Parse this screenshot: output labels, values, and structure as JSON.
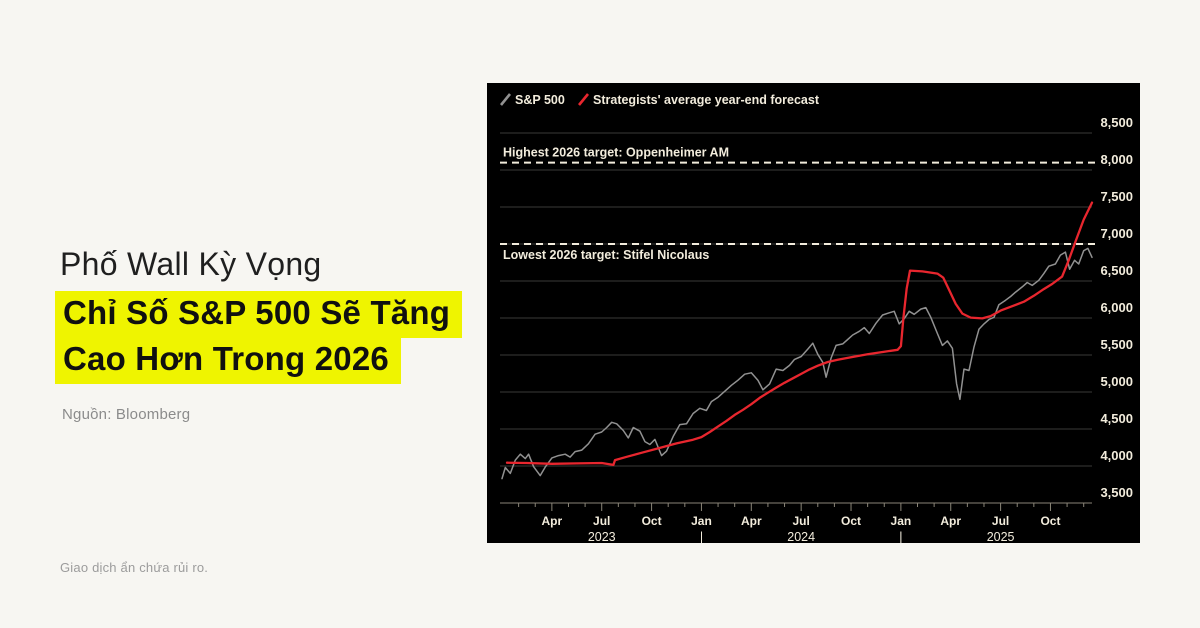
{
  "page": {
    "background_color": "#f7f6f2",
    "headline_line1": "Phố Wall Kỳ Vọng",
    "headline_line2": "Chỉ Số S&P 500 Sẽ Tăng",
    "headline_line3": "Cao Hơn Trong 2026",
    "highlight_color": "#eff400",
    "source": "Nguồn: Bloomberg",
    "disclaimer": "Giao dịch ẩn chứa rủi ro."
  },
  "chart_data": {
    "type": "line",
    "background": "#000000",
    "text_color": "#f2ecdc",
    "grid_color": "#3a3a37",
    "baseline_color": "#8a8578",
    "legend": [
      {
        "label": "S&P 500",
        "color": "#919191",
        "marker": "slash"
      },
      {
        "label": "Strategists' average year-end forecast",
        "color": "#e8262e",
        "marker": "slash"
      }
    ],
    "x_unit": "months since Jan 2023 (Jan 2023 – Dec 2025)",
    "ylim": [
      3500,
      8500
    ],
    "y_ticks": [
      {
        "v": 8500,
        "label": "8,500"
      },
      {
        "v": 8000,
        "label": "8,000"
      },
      {
        "v": 7500,
        "label": "7,500"
      },
      {
        "v": 7000,
        "label": "7,000"
      },
      {
        "v": 6500,
        "label": "6,500"
      },
      {
        "v": 6000,
        "label": "6,000"
      },
      {
        "v": 5500,
        "label": "5,500"
      },
      {
        "v": 5000,
        "label": "5,000"
      },
      {
        "v": 4500,
        "label": "4,500"
      },
      {
        "v": 4000,
        "label": "4,000"
      },
      {
        "v": 3500,
        "label": "3,500"
      }
    ],
    "x_ticks": [
      {
        "m": 3,
        "label": "Apr"
      },
      {
        "m": 6,
        "label": "Jul"
      },
      {
        "m": 9,
        "label": "Oct"
      },
      {
        "m": 12,
        "label": "Jan"
      },
      {
        "m": 15,
        "label": "Apr"
      },
      {
        "m": 18,
        "label": "Jul"
      },
      {
        "m": 21,
        "label": "Oct"
      },
      {
        "m": 24,
        "label": "Jan"
      },
      {
        "m": 27,
        "label": "Apr"
      },
      {
        "m": 30,
        "label": "Jul"
      },
      {
        "m": 33,
        "label": "Oct"
      }
    ],
    "year_labels": [
      {
        "m": 6,
        "label": "2023"
      },
      {
        "m": 12,
        "label": "|"
      },
      {
        "m": 18,
        "label": "2024"
      },
      {
        "m": 24,
        "label": "|"
      },
      {
        "m": 30,
        "label": "2025"
      }
    ],
    "annotations": [
      {
        "label": "Highest 2026 target: Oppenheimer AM",
        "value": 8100,
        "text_side": "above",
        "color": "#f2ecdc"
      },
      {
        "label": "Lowest 2026 target: Stifel Nicolaus",
        "value": 7000,
        "text_side": "below",
        "color": "#f2ecdc"
      }
    ],
    "series": [
      {
        "name": "S&P 500",
        "color": "#919191",
        "width": 1.5,
        "points": [
          [
            0,
            3830
          ],
          [
            0.2,
            3980
          ],
          [
            0.5,
            3900
          ],
          [
            0.8,
            4080
          ],
          [
            1.1,
            4160
          ],
          [
            1.4,
            4100
          ],
          [
            1.6,
            4160
          ],
          [
            1.9,
            3990
          ],
          [
            2.3,
            3870
          ],
          [
            2.6,
            3985
          ],
          [
            3,
            4110
          ],
          [
            3.4,
            4140
          ],
          [
            3.8,
            4160
          ],
          [
            4.1,
            4120
          ],
          [
            4.4,
            4195
          ],
          [
            4.8,
            4215
          ],
          [
            5.2,
            4300
          ],
          [
            5.6,
            4430
          ],
          [
            6,
            4460
          ],
          [
            6.3,
            4520
          ],
          [
            6.6,
            4590
          ],
          [
            6.9,
            4570
          ],
          [
            7.3,
            4480
          ],
          [
            7.6,
            4380
          ],
          [
            7.9,
            4520
          ],
          [
            8.3,
            4470
          ],
          [
            8.6,
            4330
          ],
          [
            8.9,
            4290
          ],
          [
            9.2,
            4360
          ],
          [
            9.6,
            4140
          ],
          [
            9.9,
            4200
          ],
          [
            10.3,
            4400
          ],
          [
            10.7,
            4560
          ],
          [
            11.1,
            4570
          ],
          [
            11.5,
            4710
          ],
          [
            11.9,
            4780
          ],
          [
            12.3,
            4750
          ],
          [
            12.6,
            4870
          ],
          [
            13,
            4930
          ],
          [
            13.4,
            5010
          ],
          [
            13.8,
            5090
          ],
          [
            14.2,
            5160
          ],
          [
            14.6,
            5240
          ],
          [
            15,
            5260
          ],
          [
            15.4,
            5160
          ],
          [
            15.7,
            5030
          ],
          [
            16.1,
            5110
          ],
          [
            16.5,
            5310
          ],
          [
            16.9,
            5290
          ],
          [
            17.3,
            5360
          ],
          [
            17.6,
            5440
          ],
          [
            18,
            5480
          ],
          [
            18.4,
            5580
          ],
          [
            18.7,
            5660
          ],
          [
            19,
            5510
          ],
          [
            19.3,
            5400
          ],
          [
            19.5,
            5200
          ],
          [
            19.8,
            5460
          ],
          [
            20.1,
            5630
          ],
          [
            20.5,
            5650
          ],
          [
            20.8,
            5710
          ],
          [
            21.1,
            5770
          ],
          [
            21.5,
            5820
          ],
          [
            21.8,
            5870
          ],
          [
            22.1,
            5790
          ],
          [
            22.5,
            5930
          ],
          [
            22.9,
            6040
          ],
          [
            23.3,
            6070
          ],
          [
            23.6,
            6090
          ],
          [
            23.9,
            5920
          ],
          [
            24.2,
            5990
          ],
          [
            24.5,
            6090
          ],
          [
            24.8,
            6050
          ],
          [
            25.2,
            6120
          ],
          [
            25.5,
            6140
          ],
          [
            25.8,
            6010
          ],
          [
            26.2,
            5790
          ],
          [
            26.5,
            5630
          ],
          [
            26.8,
            5690
          ],
          [
            27.1,
            5590
          ],
          [
            27.35,
            5110
          ],
          [
            27.55,
            4900
          ],
          [
            27.8,
            5310
          ],
          [
            28.1,
            5290
          ],
          [
            28.4,
            5610
          ],
          [
            28.7,
            5850
          ],
          [
            29,
            5920
          ],
          [
            29.3,
            5980
          ],
          [
            29.6,
            6010
          ],
          [
            29.9,
            6180
          ],
          [
            30.3,
            6240
          ],
          [
            30.6,
            6290
          ],
          [
            30.9,
            6350
          ],
          [
            31.3,
            6420
          ],
          [
            31.6,
            6480
          ],
          [
            31.9,
            6440
          ],
          [
            32.3,
            6510
          ],
          [
            32.6,
            6600
          ],
          [
            32.9,
            6700
          ],
          [
            33.3,
            6730
          ],
          [
            33.6,
            6850
          ],
          [
            33.9,
            6890
          ],
          [
            34.15,
            6660
          ],
          [
            34.45,
            6780
          ],
          [
            34.7,
            6730
          ],
          [
            35,
            6910
          ],
          [
            35.25,
            6940
          ],
          [
            35.5,
            6820
          ]
        ]
      },
      {
        "name": "Strategists' average year-end forecast",
        "color": "#e8262e",
        "width": 2.3,
        "points": [
          [
            0.3,
            4045
          ],
          [
            1.5,
            4040
          ],
          [
            3,
            4030
          ],
          [
            4.5,
            4035
          ],
          [
            6,
            4040
          ],
          [
            6.7,
            4015
          ],
          [
            6.8,
            4080
          ],
          [
            7.5,
            4125
          ],
          [
            8.5,
            4185
          ],
          [
            9.5,
            4245
          ],
          [
            10.5,
            4305
          ],
          [
            11.5,
            4355
          ],
          [
            12,
            4390
          ],
          [
            12.5,
            4460
          ],
          [
            13,
            4535
          ],
          [
            13.5,
            4610
          ],
          [
            14,
            4690
          ],
          [
            14.5,
            4760
          ],
          [
            15,
            4835
          ],
          [
            15.5,
            4920
          ],
          [
            16,
            4990
          ],
          [
            16.5,
            5060
          ],
          [
            17,
            5125
          ],
          [
            17.5,
            5185
          ],
          [
            18,
            5245
          ],
          [
            18.5,
            5305
          ],
          [
            19,
            5355
          ],
          [
            19.6,
            5405
          ],
          [
            20.2,
            5435
          ],
          [
            21,
            5470
          ],
          [
            22,
            5510
          ],
          [
            23,
            5545
          ],
          [
            23.8,
            5570
          ],
          [
            24,
            5620
          ],
          [
            24.15,
            6000
          ],
          [
            24.35,
            6400
          ],
          [
            24.55,
            6640
          ],
          [
            25.3,
            6630
          ],
          [
            26.2,
            6600
          ],
          [
            26.55,
            6545
          ],
          [
            26.9,
            6380
          ],
          [
            27.3,
            6190
          ],
          [
            27.7,
            6060
          ],
          [
            28.2,
            6005
          ],
          [
            28.9,
            5995
          ],
          [
            29.4,
            6025
          ],
          [
            30,
            6100
          ],
          [
            30.7,
            6160
          ],
          [
            31.4,
            6220
          ],
          [
            32,
            6300
          ],
          [
            32.6,
            6390
          ],
          [
            33.1,
            6460
          ],
          [
            33.7,
            6560
          ],
          [
            34.1,
            6780
          ],
          [
            34.55,
            7060
          ],
          [
            35,
            7330
          ],
          [
            35.5,
            7560
          ]
        ]
      }
    ]
  }
}
